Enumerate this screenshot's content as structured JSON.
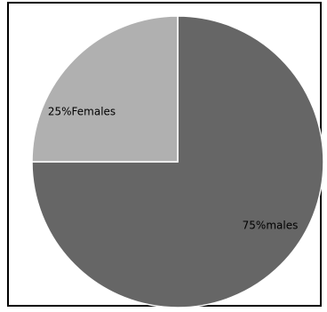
{
  "chart_data": {
    "type": "pie",
    "title": "",
    "slices": [
      {
        "label": "75%males",
        "value": 75,
        "color": "#666666"
      },
      {
        "label": "25%Females",
        "value": 25,
        "color": "#b0b0b0"
      }
    ],
    "start_angle_deg": 0,
    "direction": "clockwise",
    "edge_color": "#ffffff",
    "legend": "none"
  }
}
